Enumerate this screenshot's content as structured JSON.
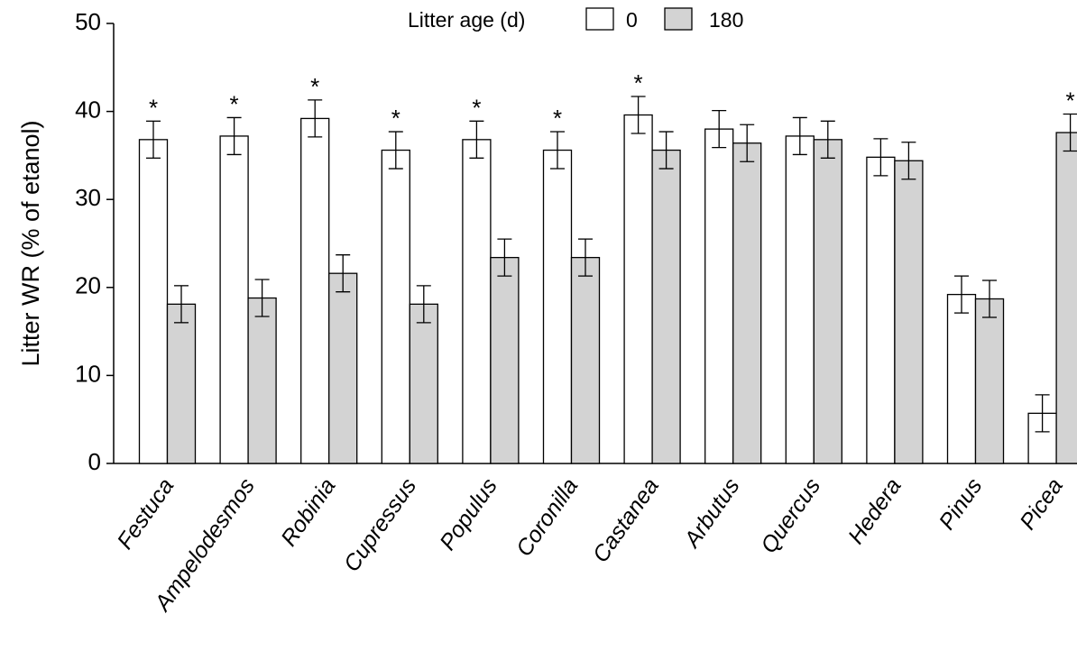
{
  "chart_data": {
    "type": "bar",
    "title": "",
    "xlabel": "",
    "ylabel": "Litter WR (% of etanol)",
    "ylim": [
      0,
      50
    ],
    "yticks": [
      0,
      10,
      20,
      30,
      40,
      50
    ],
    "legend_title": "Litter age (d)",
    "legend_position": "top-center",
    "categories": [
      "Festuca",
      "Ampelodesmos",
      "Robinia",
      "Cupressus",
      "Populus",
      "Coronilla",
      "Castanea",
      "Arbutus",
      "Quercus",
      "Hedera",
      "Pinus",
      "Picea"
    ],
    "significance_marker": "*",
    "significant": [
      true,
      true,
      true,
      true,
      true,
      true,
      true,
      false,
      false,
      false,
      false,
      true
    ],
    "series": [
      {
        "name": "0",
        "color": "#ffffff",
        "values": [
          36.8,
          37.2,
          39.2,
          35.6,
          36.8,
          35.6,
          39.6,
          38.0,
          37.2,
          34.8,
          19.2,
          5.7
        ],
        "errors": [
          2.1,
          2.1,
          2.1,
          2.1,
          2.1,
          2.1,
          2.1,
          2.1,
          2.1,
          2.1,
          2.1,
          2.1
        ]
      },
      {
        "name": "180",
        "color": "#d3d3d3",
        "values": [
          18.1,
          18.8,
          21.6,
          18.1,
          23.4,
          23.4,
          35.6,
          36.4,
          36.8,
          34.4,
          18.7,
          37.6
        ],
        "errors": [
          2.1,
          2.1,
          2.1,
          2.1,
          2.1,
          2.1,
          2.1,
          2.1,
          2.1,
          2.1,
          2.1,
          2.1
        ]
      }
    ]
  }
}
